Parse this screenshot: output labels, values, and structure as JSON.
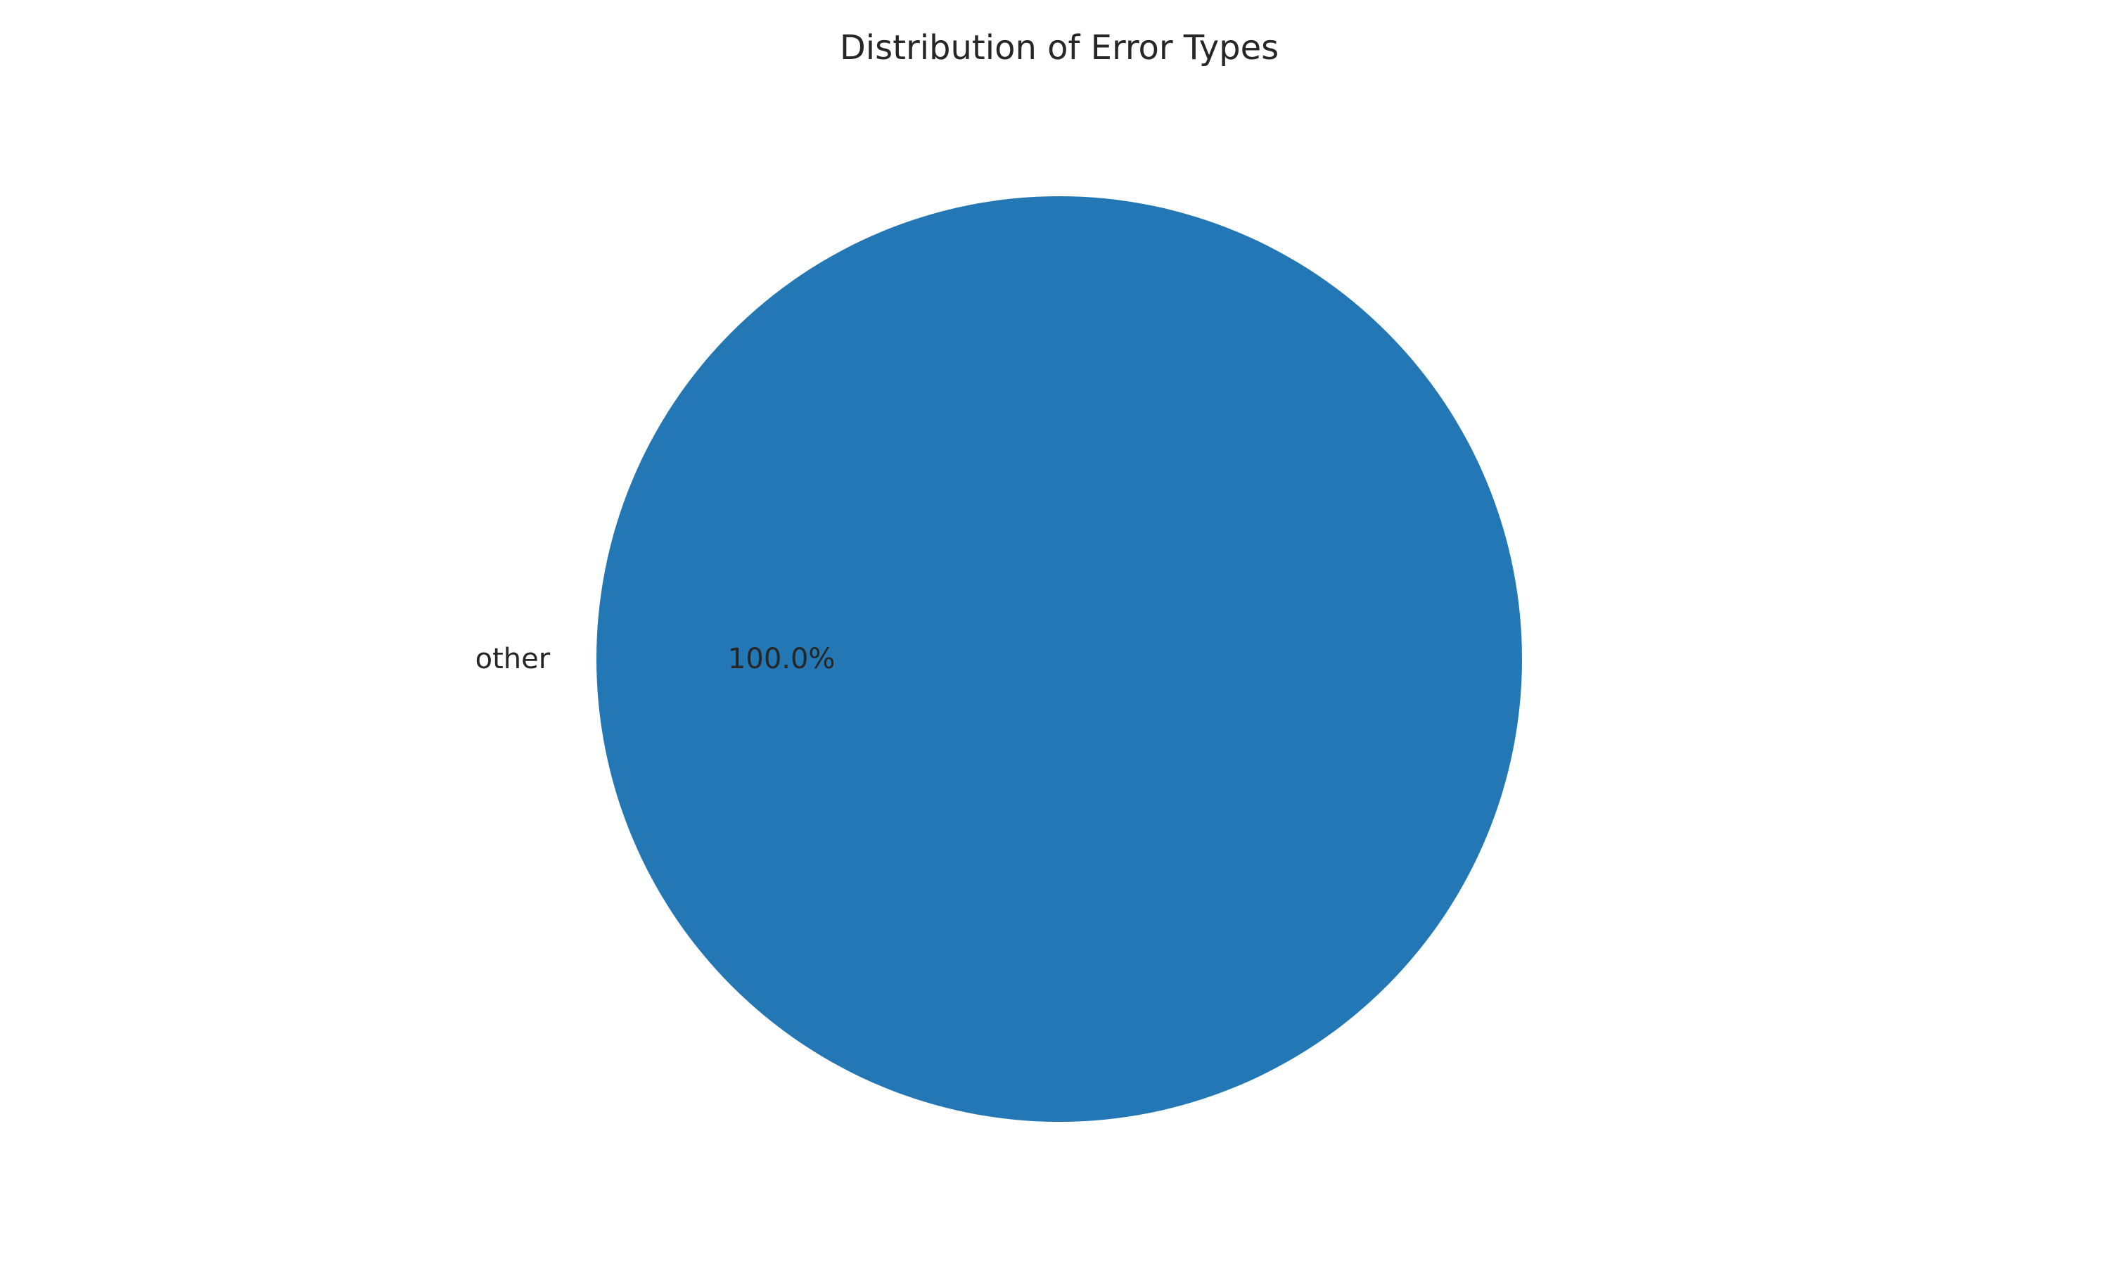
{
  "chart_data": {
    "type": "pie",
    "title": "Distribution of Error Types",
    "slices": [
      {
        "label": "other",
        "value": 100.0,
        "percent_label": "100.0%",
        "color": "#2277b4"
      }
    ]
  }
}
